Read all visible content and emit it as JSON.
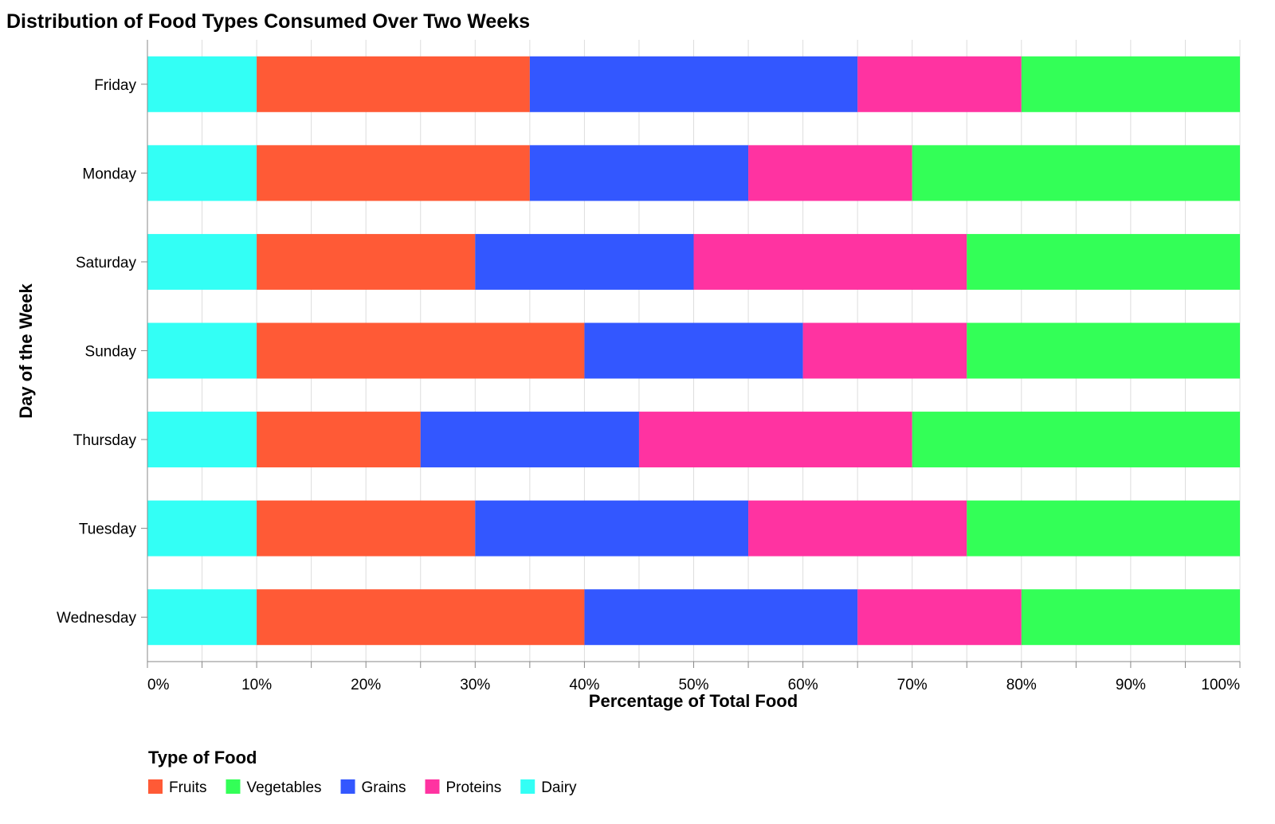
{
  "chart_data": {
    "type": "bar",
    "orientation": "horizontal",
    "stacked": "normalized",
    "title": "Distribution of Food Types Consumed Over Two Weeks",
    "xlabel": "Percentage of Total Food",
    "ylabel": "Day of the Week",
    "xlim": [
      0,
      100
    ],
    "x_ticks": [
      "0%",
      "10%",
      "20%",
      "30%",
      "40%",
      "50%",
      "60%",
      "70%",
      "80%",
      "90%",
      "100%"
    ],
    "grid": true,
    "legend_title": "Type of Food",
    "legend_position": "bottom-left",
    "categories": [
      "Friday",
      "Monday",
      "Saturday",
      "Sunday",
      "Thursday",
      "Tuesday",
      "Wednesday"
    ],
    "stack_order": [
      "Dairy",
      "Fruits",
      "Grains",
      "Proteins",
      "Vegetables"
    ],
    "legend_order": [
      "Fruits",
      "Vegetables",
      "Grains",
      "Proteins",
      "Dairy"
    ],
    "colors": {
      "Fruits": "#ff5a36",
      "Vegetables": "#33ff57",
      "Grains": "#3357ff",
      "Proteins": "#ff33a1",
      "Dairy": "#33fff5"
    },
    "series": [
      {
        "name": "Dairy",
        "values": [
          10,
          10,
          10,
          10,
          10,
          10,
          10
        ]
      },
      {
        "name": "Fruits",
        "values": [
          25,
          25,
          20,
          30,
          15,
          20,
          30
        ]
      },
      {
        "name": "Grains",
        "values": [
          30,
          20,
          20,
          20,
          20,
          25,
          25
        ]
      },
      {
        "name": "Proteins",
        "values": [
          15,
          15,
          25,
          15,
          25,
          20,
          15
        ]
      },
      {
        "name": "Vegetables",
        "values": [
          20,
          30,
          25,
          25,
          30,
          25,
          20
        ]
      }
    ]
  }
}
